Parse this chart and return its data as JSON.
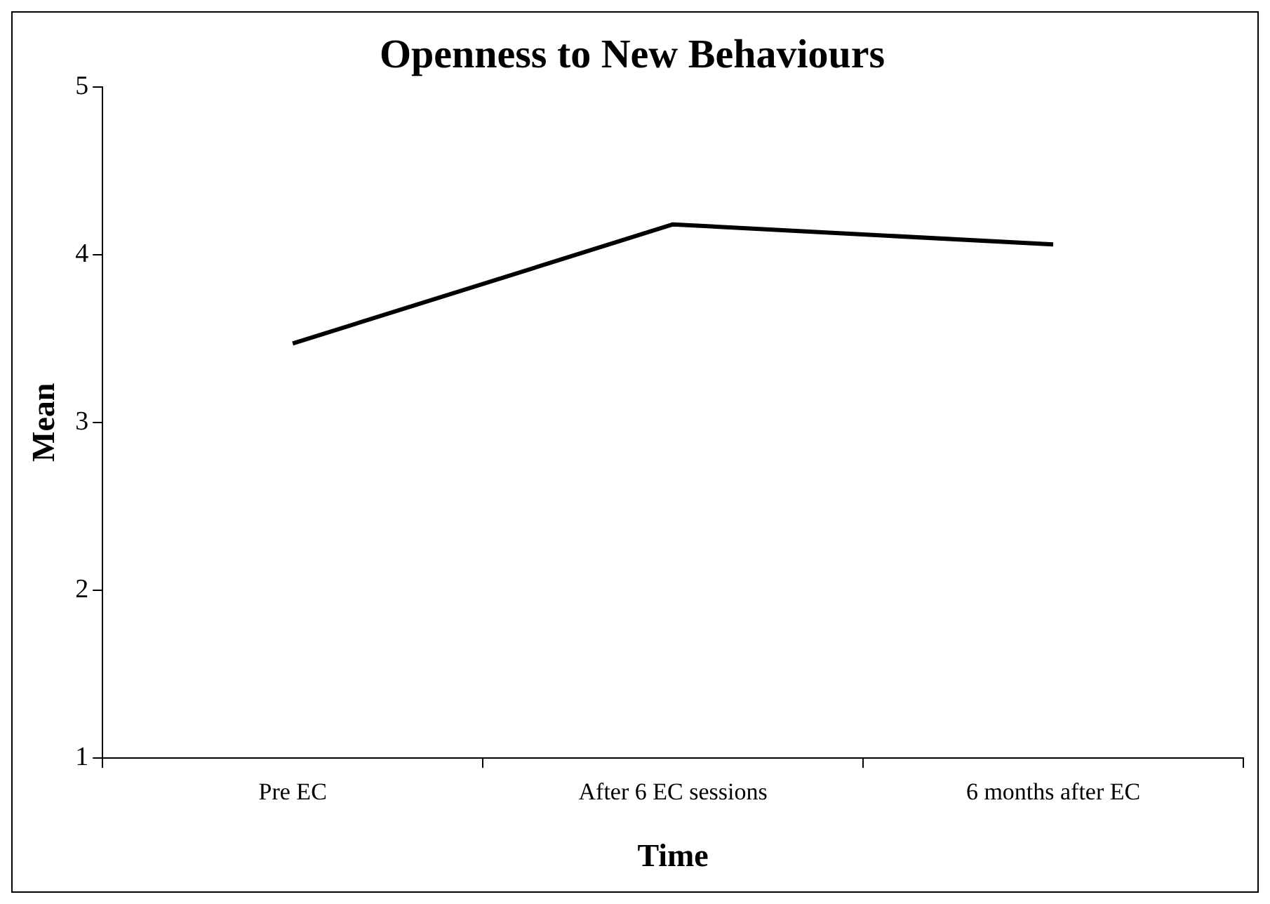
{
  "chart_data": {
    "type": "line",
    "title": "Openness to New Behaviours",
    "xlabel": "Time",
    "ylabel": "Mean",
    "categories": [
      "Pre EC",
      "After 6 EC sessions",
      "6 months after EC"
    ],
    "series": [
      {
        "color": "#000000",
        "values": [
          3.47,
          4.18,
          4.06
        ]
      }
    ],
    "ylim": [
      1,
      5
    ],
    "yticks": [
      1,
      2,
      3,
      4,
      5
    ],
    "grid": false,
    "legend": false,
    "marker": "none",
    "line_style": "solid"
  }
}
